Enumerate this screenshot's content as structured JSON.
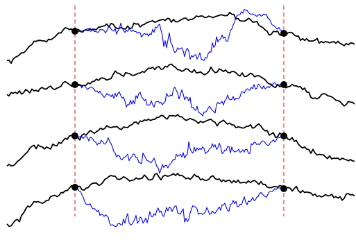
{
  "colors": {
    "background": "#ffffff",
    "base_path": "#000000",
    "bridge_path": "#0000ff",
    "marker_line": "#e04040",
    "endpoint": "#000000"
  },
  "diagram": {
    "panel_count": 4,
    "panels": [
      {
        "id": "panel-1"
      },
      {
        "id": "panel-2"
      },
      {
        "id": "panel-3"
      },
      {
        "id": "panel-4"
      }
    ]
  }
}
